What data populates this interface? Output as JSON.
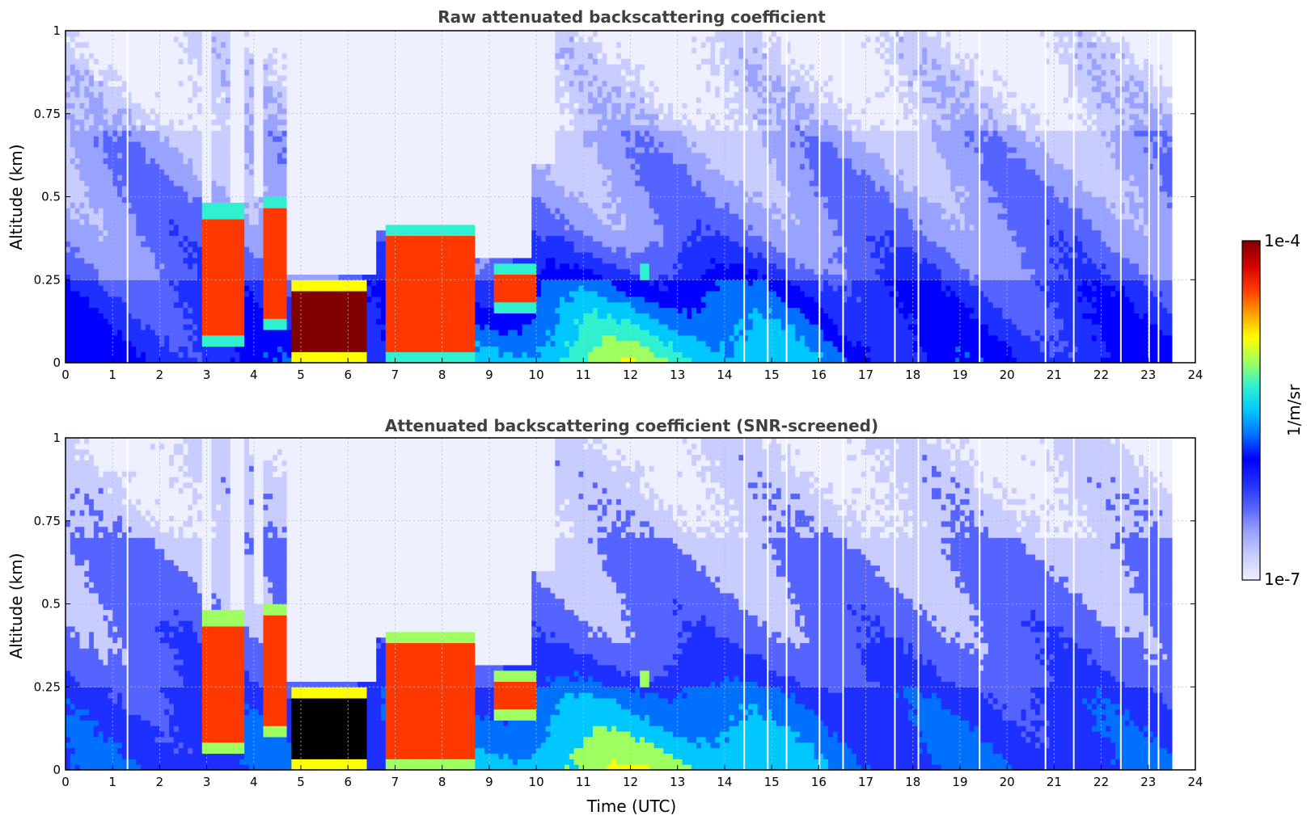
{
  "chart_data": [
    {
      "type": "heatmap",
      "title": "Raw attenuated backscattering coefficient",
      "xlabel": "",
      "ylabel": "Altitude (km)",
      "xlim": [
        0,
        24
      ],
      "ylim": [
        0,
        1
      ],
      "x_ticks": [
        "0",
        "1",
        "2",
        "3",
        "4",
        "5",
        "6",
        "7",
        "8",
        "9",
        "10",
        "11",
        "12",
        "13",
        "14",
        "15",
        "16",
        "17",
        "18",
        "19",
        "20",
        "21",
        "22",
        "23",
        "24"
      ],
      "y_ticks": [
        "0",
        "0.25",
        "0.5",
        "0.75",
        "1"
      ],
      "grid": true,
      "colorscale": "jet",
      "features": [
        {
          "kind": "aerosol layer",
          "x": [
            0,
            23.5
          ],
          "y": [
            0,
            0.45
          ],
          "level": "low"
        },
        {
          "kind": "cloud",
          "x": [
            2.9,
            3.8
          ],
          "y": [
            0.05,
            0.48
          ],
          "level": "high"
        },
        {
          "kind": "cloud",
          "x": [
            4.2,
            4.7
          ],
          "y": [
            0.1,
            0.5
          ],
          "level": "high"
        },
        {
          "kind": "cloud",
          "x": [
            4.8,
            6.4
          ],
          "y": [
            0,
            0.25
          ],
          "level": "very high"
        },
        {
          "kind": "cloud",
          "x": [
            6.8,
            8.7
          ],
          "y": [
            0,
            0.42
          ],
          "level": "high"
        },
        {
          "kind": "cloud",
          "x": [
            9.1,
            10
          ],
          "y": [
            0.15,
            0.3
          ],
          "level": "high"
        },
        {
          "kind": "cloud",
          "x": [
            12.2,
            12.4
          ],
          "y": [
            0.25,
            0.3
          ],
          "level": "high"
        }
      ],
      "data_gaps_x": [
        1.3,
        14.4,
        14.9,
        15.3,
        16.0,
        16.5,
        17.6,
        18.1,
        19.4,
        20.8,
        21.4,
        22.4,
        23.0,
        23.2
      ]
    },
    {
      "type": "heatmap",
      "title": "Attenuated backscattering coefficient (SNR-screened)",
      "xlabel": "Time (UTC)",
      "ylabel": "Altitude (km)",
      "xlim": [
        0,
        24
      ],
      "ylim": [
        0,
        1
      ],
      "x_ticks": [
        "0",
        "1",
        "2",
        "3",
        "4",
        "5",
        "6",
        "7",
        "8",
        "9",
        "10",
        "11",
        "12",
        "13",
        "14",
        "15",
        "16",
        "17",
        "18",
        "19",
        "20",
        "21",
        "22",
        "23",
        "24"
      ],
      "y_ticks": [
        "0",
        "0.25",
        "0.5",
        "0.75",
        "1"
      ],
      "grid": true,
      "colorscale": "jet",
      "saturated_color": "#000000",
      "data_gaps_x": [
        1.3,
        14.4,
        14.9,
        15.3,
        16.0,
        16.5,
        17.6,
        18.1,
        19.4,
        20.8,
        21.4,
        22.4,
        23.0,
        23.2
      ]
    }
  ],
  "colorbar": {
    "label": "1/m/sr",
    "max_label": "1e-4",
    "min_label": "1e-7",
    "scale": "log",
    "range": [
      1e-07,
      0.0001
    ],
    "colors": [
      "#eef0ff",
      "#c8ccff",
      "#9aa2ff",
      "#5563ff",
      "#1e30ff",
      "#0000ff",
      "#0070ff",
      "#00c8ff",
      "#30f0d0",
      "#a0ff60",
      "#ffff00",
      "#ffa000",
      "#ff3800",
      "#d00000",
      "#800000"
    ]
  }
}
